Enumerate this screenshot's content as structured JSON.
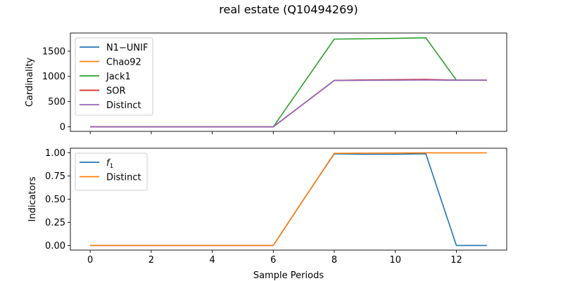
{
  "figure": {
    "title": "real estate (Q10494269)"
  },
  "chart_data": [
    {
      "type": "line",
      "ylabel": "Cardinality",
      "xlabel": "",
      "xlim": [
        -0.65,
        13.65
      ],
      "ylim": [
        -90,
        1860
      ],
      "xticks": [
        0,
        2,
        4,
        6,
        8,
        10,
        12
      ],
      "yticks": [
        0,
        500,
        1000,
        1500
      ],
      "show_xtick_labels": false,
      "legend": "top-left",
      "grid": false,
      "x": [
        0,
        1,
        2,
        3,
        4,
        5,
        6,
        7,
        8,
        9,
        10,
        11,
        12,
        13
      ],
      "series": [
        {
          "name": "N1−UNIF",
          "color": "#1f77b4",
          "values": [
            0,
            0,
            0,
            0,
            0,
            0,
            0,
            460,
            920,
            925,
            930,
            935,
            925,
            925
          ]
        },
        {
          "name": "Chao92",
          "color": "#ff7f0e",
          "values": [
            0,
            0,
            0,
            0,
            0,
            0,
            0,
            460,
            920,
            925,
            930,
            935,
            925,
            925
          ]
        },
        {
          "name": "Jack1",
          "color": "#2ca02c",
          "values": [
            0,
            0,
            0,
            0,
            0,
            0,
            0,
            870,
            1740,
            1745,
            1755,
            1765,
            925,
            925
          ]
        },
        {
          "name": "SOR",
          "color": "#d62728",
          "values": [
            0,
            0,
            0,
            0,
            0,
            0,
            0,
            460,
            920,
            930,
            935,
            940,
            925,
            925
          ]
        },
        {
          "name": "Distinct",
          "color": "#9467bd",
          "values": [
            0,
            0,
            0,
            0,
            0,
            0,
            0,
            460,
            918,
            922,
            925,
            928,
            925,
            925
          ]
        }
      ]
    },
    {
      "type": "line",
      "ylabel": "Indicators",
      "xlabel": "Sample Periods",
      "xlim": [
        -0.65,
        13.65
      ],
      "ylim": [
        -0.05,
        1.05
      ],
      "xticks": [
        0,
        2,
        4,
        6,
        8,
        10,
        12
      ],
      "yticks": [
        0.0,
        0.25,
        0.5,
        0.75,
        1.0
      ],
      "ytick_labels": [
        "0.00",
        "0.25",
        "0.50",
        "0.75",
        "1.00"
      ],
      "show_xtick_labels": true,
      "legend": "top-left",
      "grid": false,
      "x": [
        0,
        1,
        2,
        3,
        4,
        5,
        6,
        7,
        8,
        9,
        10,
        11,
        12,
        13
      ],
      "series": [
        {
          "name": "f1",
          "color": "#1f77b4",
          "values": [
            0,
            0,
            0,
            0,
            0,
            0,
            0,
            0.5,
            0.99,
            0.985,
            0.985,
            0.99,
            0,
            0
          ]
        },
        {
          "name": "Distinct",
          "color": "#ff7f0e",
          "values": [
            0,
            0,
            0,
            0,
            0,
            0,
            0,
            0.5,
            0.995,
            0.997,
            0.998,
            1.0,
            1.0,
            1.0
          ]
        }
      ]
    }
  ]
}
